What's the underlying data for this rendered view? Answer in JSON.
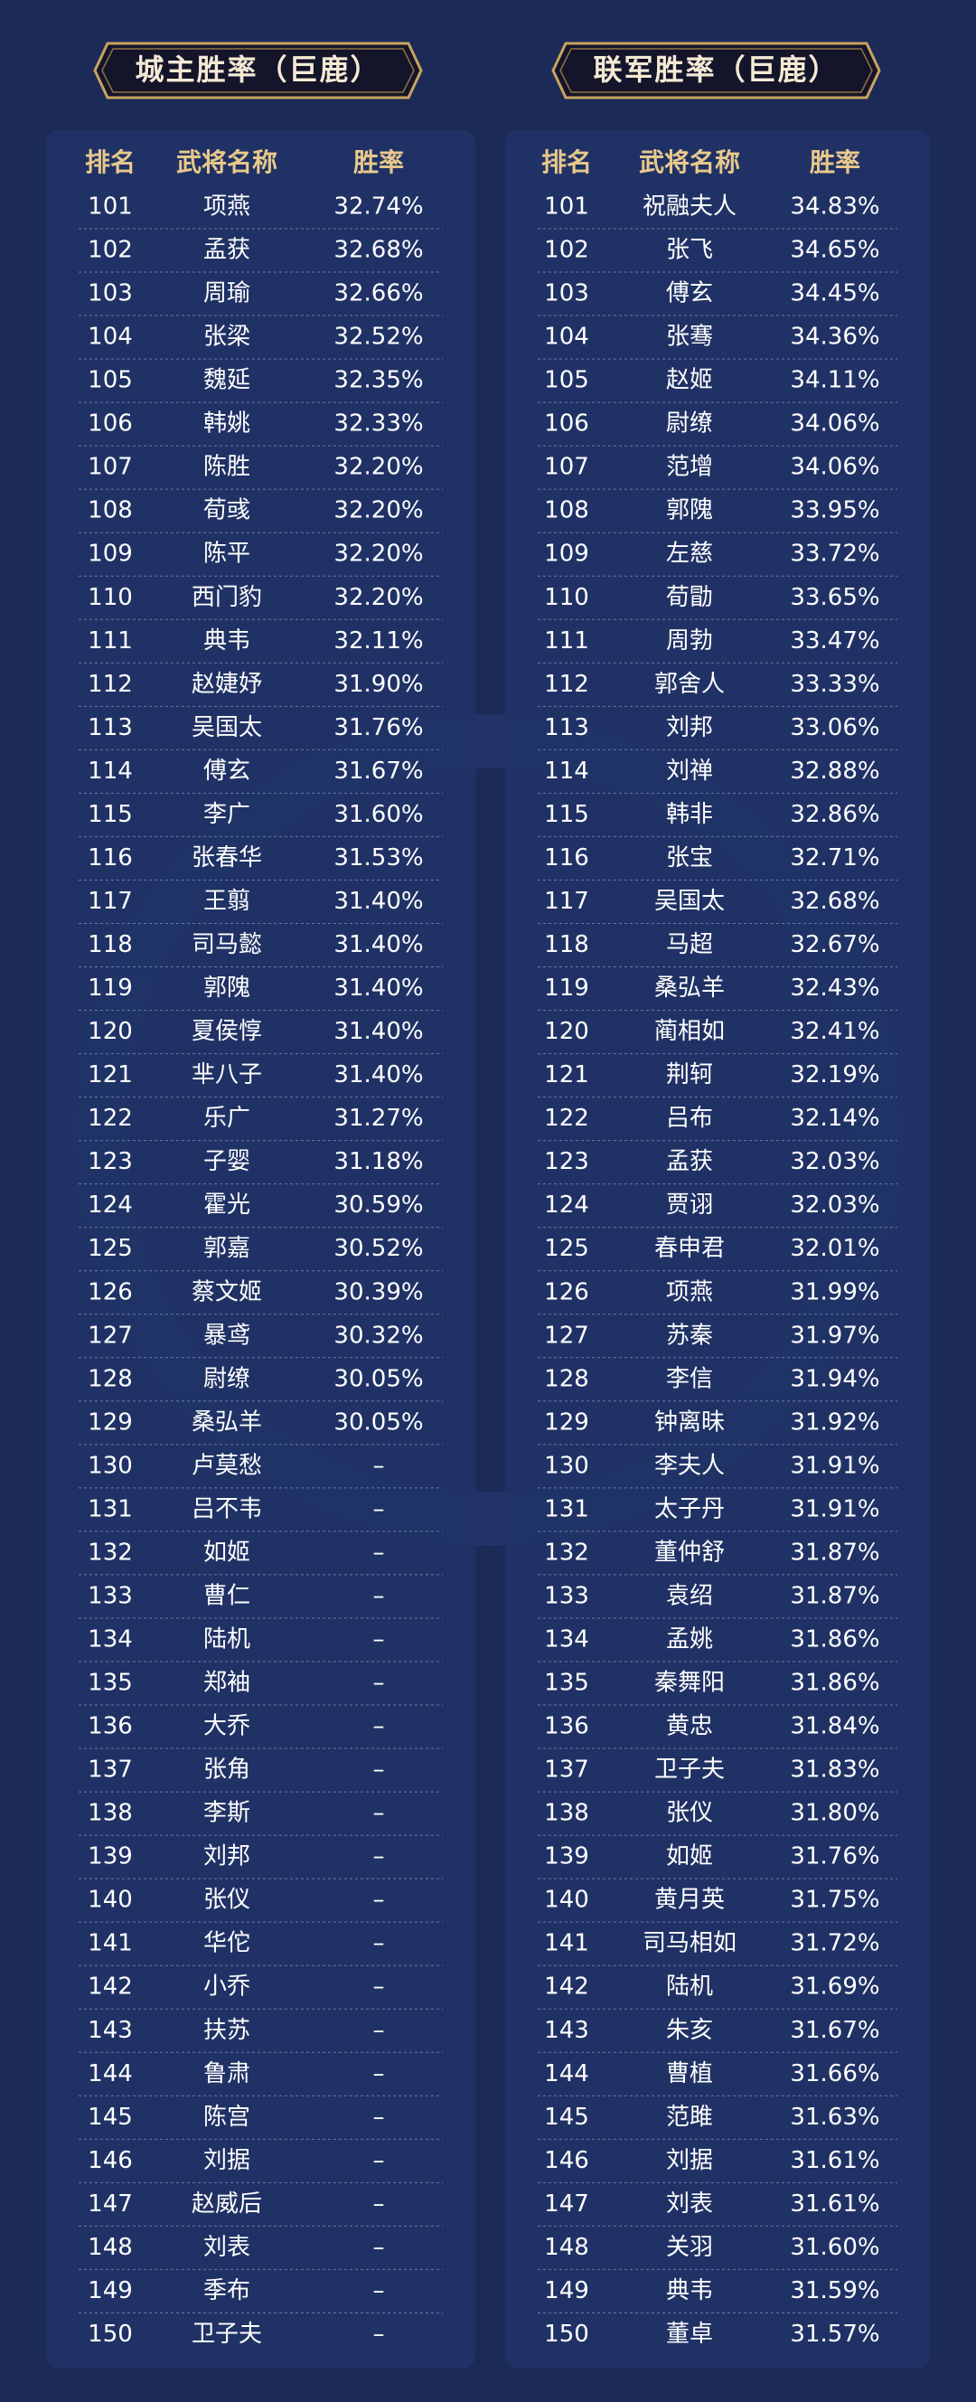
{
  "tables": [
    {
      "title": "城主胜率（巨鹿）",
      "header": [
        "排名",
        "武将名称",
        "胜率"
      ],
      "rows": [
        [
          "101",
          "项燕",
          "32.74%"
        ],
        [
          "102",
          "孟获",
          "32.68%"
        ],
        [
          "103",
          "周瑜",
          "32.66%"
        ],
        [
          "104",
          "张梁",
          "32.52%"
        ],
        [
          "105",
          "魏延",
          "32.35%"
        ],
        [
          "106",
          "韩姚",
          "32.33%"
        ],
        [
          "107",
          "陈胜",
          "32.20%"
        ],
        [
          "108",
          "荀彧",
          "32.20%"
        ],
        [
          "109",
          "陈平",
          "32.20%"
        ],
        [
          "110",
          "西门豹",
          "32.20%"
        ],
        [
          "111",
          "典韦",
          "32.11%"
        ],
        [
          "112",
          "赵婕妤",
          "31.90%"
        ],
        [
          "113",
          "吴国太",
          "31.76%"
        ],
        [
          "114",
          "傅玄",
          "31.67%"
        ],
        [
          "115",
          "李广",
          "31.60%"
        ],
        [
          "116",
          "张春华",
          "31.53%"
        ],
        [
          "117",
          "王翦",
          "31.40%"
        ],
        [
          "118",
          "司马懿",
          "31.40%"
        ],
        [
          "119",
          "郭隗",
          "31.40%"
        ],
        [
          "120",
          "夏侯惇",
          "31.40%"
        ],
        [
          "121",
          "芈八子",
          "31.40%"
        ],
        [
          "122",
          "乐广",
          "31.27%"
        ],
        [
          "123",
          "子婴",
          "31.18%"
        ],
        [
          "124",
          "霍光",
          "30.59%"
        ],
        [
          "125",
          "郭嘉",
          "30.52%"
        ],
        [
          "126",
          "蔡文姬",
          "30.39%"
        ],
        [
          "127",
          "暴鸢",
          "30.32%"
        ],
        [
          "128",
          "尉缭",
          "30.05%"
        ],
        [
          "129",
          "桑弘羊",
          "30.05%"
        ],
        [
          "130",
          "卢莫愁",
          "–"
        ],
        [
          "131",
          "吕不韦",
          "–"
        ],
        [
          "132",
          "如姬",
          "–"
        ],
        [
          "133",
          "曹仁",
          "–"
        ],
        [
          "134",
          "陆机",
          "–"
        ],
        [
          "135",
          "郑袖",
          "–"
        ],
        [
          "136",
          "大乔",
          "–"
        ],
        [
          "137",
          "张角",
          "–"
        ],
        [
          "138",
          "李斯",
          "–"
        ],
        [
          "139",
          "刘邦",
          "–"
        ],
        [
          "140",
          "张仪",
          "–"
        ],
        [
          "141",
          "华佗",
          "–"
        ],
        [
          "142",
          "小乔",
          "–"
        ],
        [
          "143",
          "扶苏",
          "–"
        ],
        [
          "144",
          "鲁肃",
          "–"
        ],
        [
          "145",
          "陈宫",
          "–"
        ],
        [
          "146",
          "刘据",
          "–"
        ],
        [
          "147",
          "赵威后",
          "–"
        ],
        [
          "148",
          "刘表",
          "–"
        ],
        [
          "149",
          "季布",
          "–"
        ],
        [
          "150",
          "卫子夫",
          "–"
        ]
      ]
    },
    {
      "title": "联军胜率（巨鹿）",
      "header": [
        "排名",
        "武将名称",
        "胜率"
      ],
      "rows": [
        [
          "101",
          "祝融夫人",
          "34.83%"
        ],
        [
          "102",
          "张飞",
          "34.65%"
        ],
        [
          "103",
          "傅玄",
          "34.45%"
        ],
        [
          "104",
          "张骞",
          "34.36%"
        ],
        [
          "105",
          "赵姬",
          "34.11%"
        ],
        [
          "106",
          "尉缭",
          "34.06%"
        ],
        [
          "107",
          "范增",
          "34.06%"
        ],
        [
          "108",
          "郭隗",
          "33.95%"
        ],
        [
          "109",
          "左慈",
          "33.72%"
        ],
        [
          "110",
          "荀勖",
          "33.65%"
        ],
        [
          "111",
          "周勃",
          "33.47%"
        ],
        [
          "112",
          "郭舍人",
          "33.33%"
        ],
        [
          "113",
          "刘邦",
          "33.06%"
        ],
        [
          "114",
          "刘禅",
          "32.88%"
        ],
        [
          "115",
          "韩非",
          "32.86%"
        ],
        [
          "116",
          "张宝",
          "32.71%"
        ],
        [
          "117",
          "吴国太",
          "32.68%"
        ],
        [
          "118",
          "马超",
          "32.67%"
        ],
        [
          "119",
          "桑弘羊",
          "32.43%"
        ],
        [
          "120",
          "蔺相如",
          "32.41%"
        ],
        [
          "121",
          "荆轲",
          "32.19%"
        ],
        [
          "122",
          "吕布",
          "32.14%"
        ],
        [
          "123",
          "孟获",
          "32.03%"
        ],
        [
          "124",
          "贾诩",
          "32.03%"
        ],
        [
          "125",
          "春申君",
          "32.01%"
        ],
        [
          "126",
          "项燕",
          "31.99%"
        ],
        [
          "127",
          "苏秦",
          "31.97%"
        ],
        [
          "128",
          "李信",
          "31.94%"
        ],
        [
          "129",
          "钟离昧",
          "31.92%"
        ],
        [
          "130",
          "李夫人",
          "31.91%"
        ],
        [
          "131",
          "太子丹",
          "31.91%"
        ],
        [
          "132",
          "董仲舒",
          "31.87%"
        ],
        [
          "133",
          "袁绍",
          "31.87%"
        ],
        [
          "134",
          "孟姚",
          "31.86%"
        ],
        [
          "135",
          "秦舞阳",
          "31.86%"
        ],
        [
          "136",
          "黄忠",
          "31.84%"
        ],
        [
          "137",
          "卫子夫",
          "31.83%"
        ],
        [
          "138",
          "张仪",
          "31.80%"
        ],
        [
          "139",
          "如姬",
          "31.76%"
        ],
        [
          "140",
          "黄月英",
          "31.75%"
        ],
        [
          "141",
          "司马相如",
          "31.72%"
        ],
        [
          "142",
          "陆机",
          "31.69%"
        ],
        [
          "143",
          "朱亥",
          "31.67%"
        ],
        [
          "144",
          "曹植",
          "31.66%"
        ],
        [
          "145",
          "范雎",
          "31.63%"
        ],
        [
          "146",
          "刘据",
          "31.61%"
        ],
        [
          "147",
          "刘表",
          "31.61%"
        ],
        [
          "148",
          "关羽",
          "31.60%"
        ],
        [
          "149",
          "典韦",
          "31.59%"
        ],
        [
          "150",
          "董卓",
          "31.57%"
        ]
      ]
    }
  ]
}
